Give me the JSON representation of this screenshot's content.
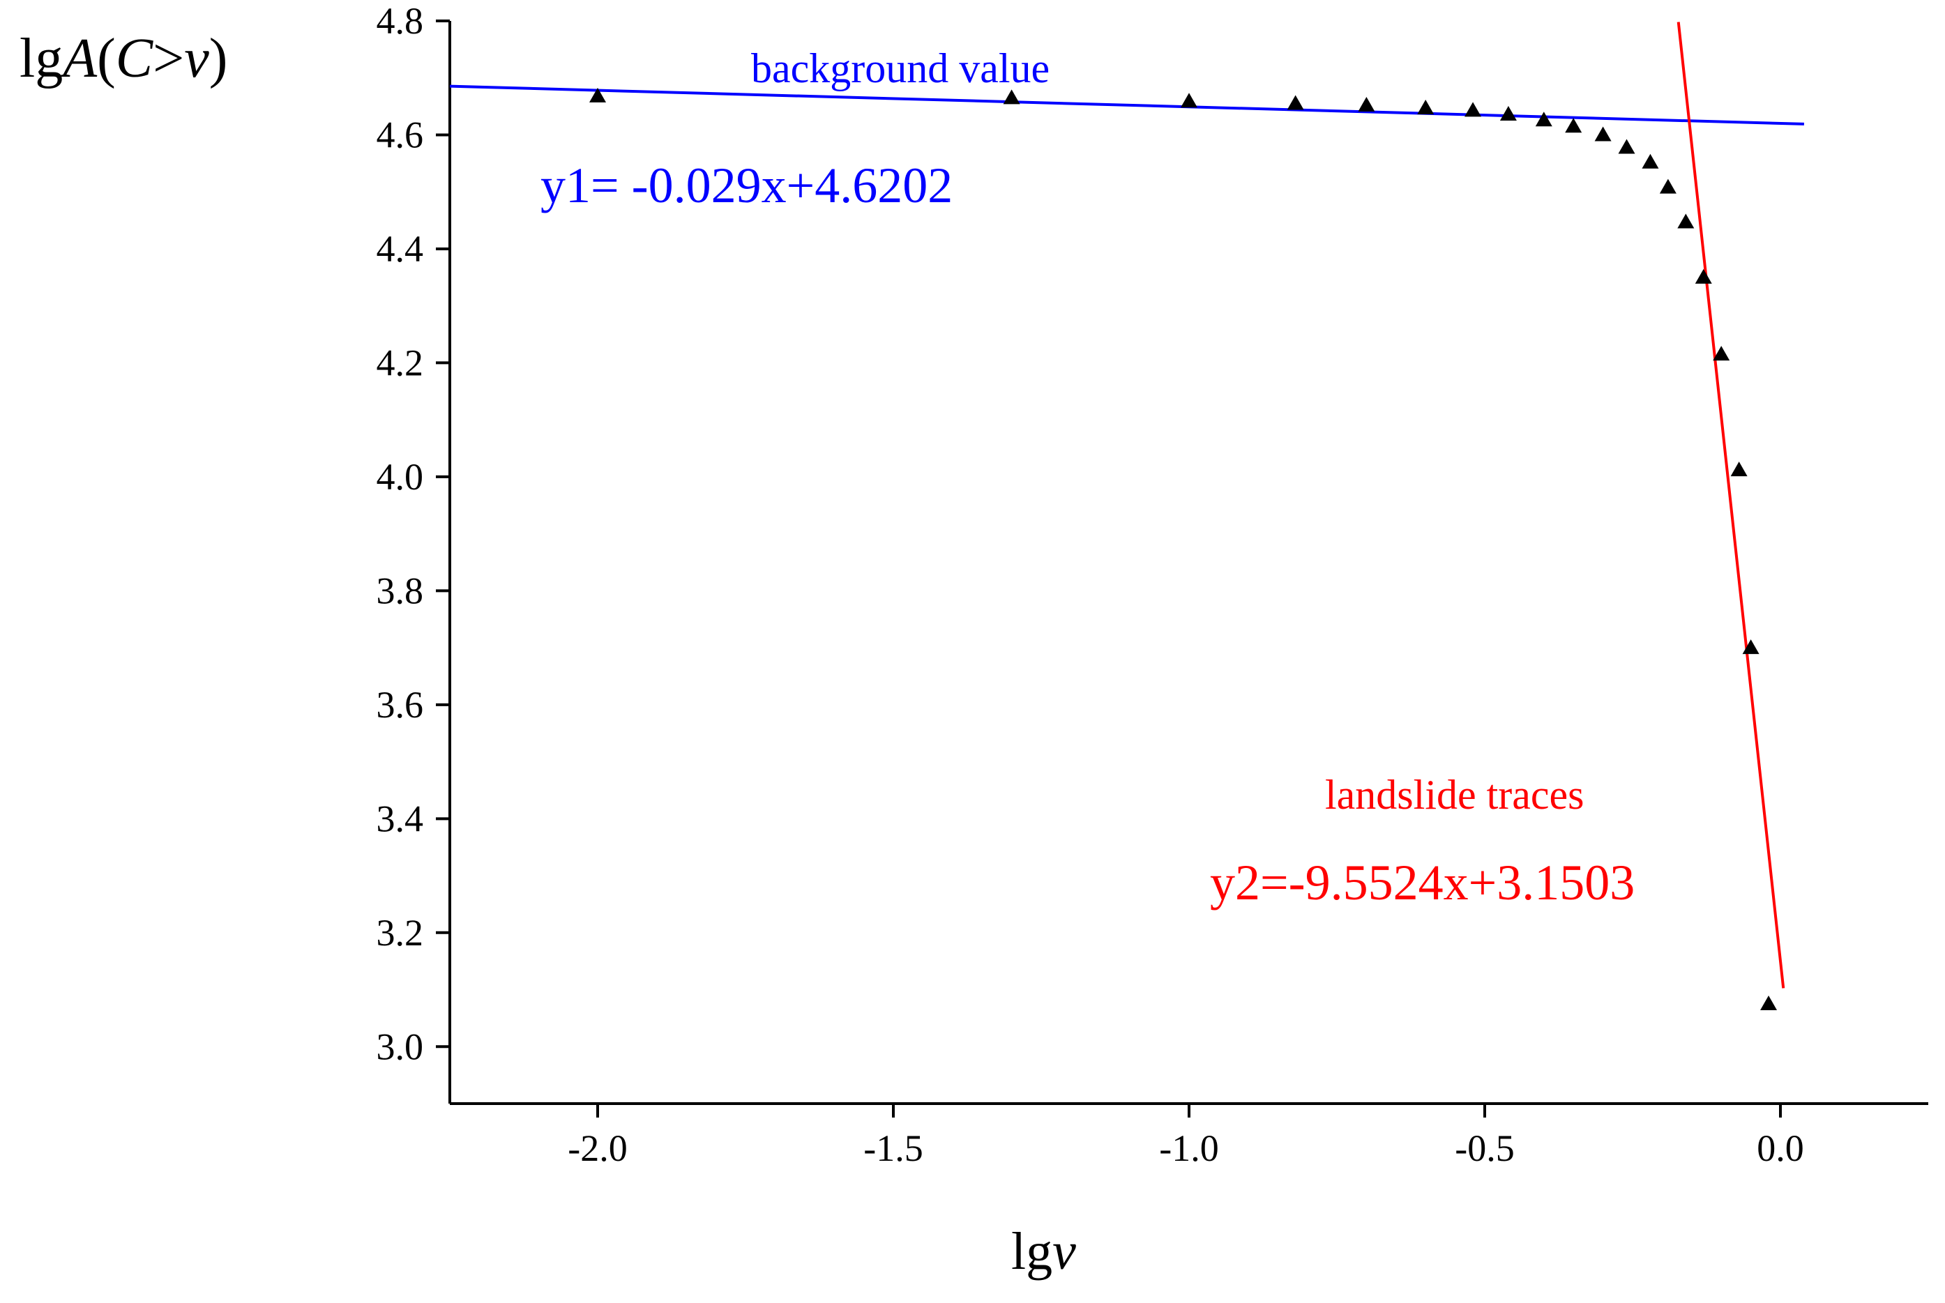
{
  "chart_data": {
    "type": "scatter",
    "title": "",
    "xlabel": {
      "prefix": "lg",
      "var": "v"
    },
    "ylabel": {
      "prefix": "lg",
      "A": "A",
      "open": "(",
      "C": "C",
      "gt": ">",
      "v": "v",
      "close": ")"
    },
    "xlim": [
      -2.25,
      0.25
    ],
    "ylim": [
      2.9,
      4.8
    ],
    "x_ticks": [
      -2.0,
      -1.5,
      -1.0,
      -0.5,
      0.0
    ],
    "x_tick_labels": [
      "-2.0",
      "-1.5",
      "-1.0",
      "-0.5",
      "0.0"
    ],
    "y_ticks": [
      3.0,
      3.2,
      3.4,
      3.6,
      3.8,
      4.0,
      4.2,
      4.4,
      4.6,
      4.8
    ],
    "y_tick_labels": [
      "3.0",
      "3.2",
      "3.4",
      "3.6",
      "3.8",
      "4.0",
      "4.2",
      "4.4",
      "4.6",
      "4.8"
    ],
    "grid": false,
    "marker": "triangle",
    "marker_color": "#000000",
    "points": [
      {
        "x": -2.0,
        "y": 4.668
      },
      {
        "x": -1.3,
        "y": 4.665
      },
      {
        "x": -1.0,
        "y": 4.659
      },
      {
        "x": -0.82,
        "y": 4.655
      },
      {
        "x": -0.7,
        "y": 4.652
      },
      {
        "x": -0.6,
        "y": 4.647
      },
      {
        "x": -0.52,
        "y": 4.643
      },
      {
        "x": -0.46,
        "y": 4.636
      },
      {
        "x": -0.4,
        "y": 4.626
      },
      {
        "x": -0.35,
        "y": 4.615
      },
      {
        "x": -0.3,
        "y": 4.6
      },
      {
        "x": -0.26,
        "y": 4.578
      },
      {
        "x": -0.22,
        "y": 4.552
      },
      {
        "x": -0.19,
        "y": 4.508
      },
      {
        "x": -0.16,
        "y": 4.447
      },
      {
        "x": -0.13,
        "y": 4.35
      },
      {
        "x": -0.1,
        "y": 4.215
      },
      {
        "x": -0.07,
        "y": 4.012
      },
      {
        "x": -0.05,
        "y": 3.7
      },
      {
        "x": -0.02,
        "y": 3.075
      }
    ],
    "fit_lines": [
      {
        "name": "background value",
        "equation": "y1= -0.029x+4.6202",
        "slope": -0.029,
        "intercept": 4.6202,
        "x_range": [
          -2.25,
          0.04
        ],
        "color": "#0000ff"
      },
      {
        "name": "landslide traces",
        "equation": "y2=-9.5524x+3.1503",
        "slope": -9.5524,
        "intercept": 3.1503,
        "x_range": [
          -0.1725,
          0.005
        ],
        "color": "#ff0000"
      }
    ]
  }
}
